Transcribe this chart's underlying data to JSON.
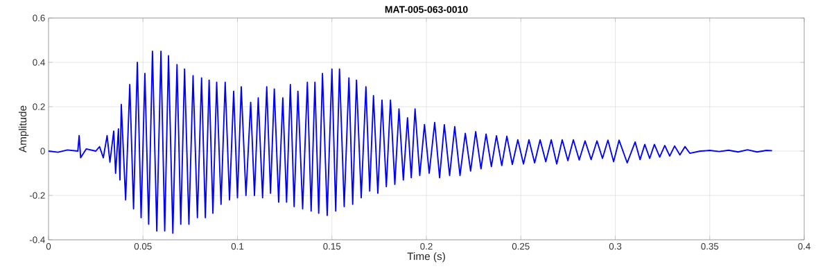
{
  "chart_data": {
    "type": "line",
    "title": "MAT-005-063-0010",
    "xlabel": "Time (s)",
    "ylabel": "Amplitude",
    "xlim": [
      0,
      0.4
    ],
    "xticks": [
      0,
      0.05,
      0.1,
      0.15,
      0.2,
      0.25,
      0.3,
      0.35,
      0.4
    ],
    "ylim": [
      -0.4,
      0.6
    ],
    "yticks": [
      -0.4,
      -0.2,
      0,
      0.2,
      0.4,
      0.6
    ],
    "grid": true,
    "series": [
      {
        "color": "#0000ff",
        "x": [
          0,
          0.005,
          0.01,
          0.0155,
          0.0162,
          0.017,
          0.02,
          0.025,
          0.027,
          0.029,
          0.031,
          0.0325,
          0.0345,
          0.0355,
          0.037,
          0.0378,
          0.0385,
          0.0408,
          0.043,
          0.045,
          0.047,
          0.049,
          0.051,
          0.053,
          0.055,
          0.0573,
          0.0595,
          0.0615,
          0.0635,
          0.0658,
          0.068,
          0.07,
          0.072,
          0.0743,
          0.0765,
          0.0788,
          0.081,
          0.083,
          0.085,
          0.087,
          0.089,
          0.0913,
          0.0935,
          0.0958,
          0.098,
          0.1,
          0.102,
          0.1045,
          0.107,
          0.109,
          0.111,
          0.1133,
          0.1155,
          0.1175,
          0.1195,
          0.1218,
          0.124,
          0.126,
          0.128,
          0.13,
          0.132,
          0.1345,
          0.137,
          0.139,
          0.141,
          0.143,
          0.145,
          0.1475,
          0.15,
          0.152,
          0.154,
          0.1565,
          0.159,
          0.161,
          0.163,
          0.1655,
          0.168,
          0.17,
          0.172,
          0.1743,
          0.1765,
          0.1788,
          0.181,
          0.1833,
          0.1855,
          0.1878,
          0.19,
          0.192,
          0.194,
          0.1965,
          0.199,
          0.2015,
          0.2044,
          0.207,
          0.2095,
          0.2123,
          0.215,
          0.2178,
          0.2206,
          0.2234,
          0.2261,
          0.2289,
          0.2316,
          0.2344,
          0.2371,
          0.2399,
          0.2426,
          0.2455,
          0.2484,
          0.2514,
          0.2543,
          0.2573,
          0.2602,
          0.2632,
          0.2661,
          0.269,
          0.2719,
          0.2749,
          0.2778,
          0.2809,
          0.284,
          0.2872,
          0.2903,
          0.2932,
          0.2961,
          0.2991,
          0.302,
          0.3063,
          0.3105,
          0.3131,
          0.3156,
          0.3182,
          0.3207,
          0.3235,
          0.3262,
          0.3288,
          0.3314,
          0.3342,
          0.3369,
          0.3395,
          0.345,
          0.35,
          0.355,
          0.36,
          0.365,
          0.37,
          0.375,
          0.38,
          0.383
        ],
        "values": [
          0,
          -0.005,
          0.005,
          0,
          0.07,
          -0.03,
          0.01,
          0,
          0.02,
          -0.03,
          0.07,
          -0.05,
          0.09,
          -0.1,
          0.1,
          -0.13,
          0.21,
          -0.22,
          0.3,
          -0.26,
          0.4,
          -0.3,
          0.35,
          -0.33,
          0.45,
          -0.36,
          0.45,
          -0.36,
          0.43,
          -0.37,
          0.39,
          -0.33,
          0.37,
          -0.33,
          0.34,
          -0.3,
          0.33,
          -0.3,
          0.32,
          -0.28,
          0.31,
          -0.24,
          0.31,
          -0.22,
          0.27,
          -0.21,
          0.29,
          -0.2,
          0.22,
          -0.2,
          0.24,
          -0.21,
          0.29,
          -0.19,
          0.28,
          -0.23,
          0.24,
          -0.23,
          0.3,
          -0.25,
          0.27,
          -0.26,
          0.31,
          -0.27,
          0.31,
          -0.28,
          0.35,
          -0.29,
          0.37,
          -0.27,
          0.37,
          -0.25,
          0.33,
          -0.24,
          0.32,
          -0.21,
          0.29,
          -0.18,
          0.25,
          -0.19,
          0.23,
          -0.16,
          0.23,
          -0.15,
          0.19,
          -0.13,
          0.15,
          -0.12,
          0.19,
          -0.11,
          0.12,
          -0.1,
          0.129,
          -0.12,
          0.119,
          -0.11,
          0.11,
          -0.11,
          0.08,
          -0.09,
          0.088,
          -0.08,
          0.077,
          -0.07,
          0.069,
          -0.065,
          0.067,
          -0.06,
          0.051,
          -0.058,
          0.051,
          -0.053,
          0.051,
          -0.048,
          0.051,
          -0.058,
          0.051,
          -0.043,
          0.051,
          -0.04,
          0.046,
          -0.038,
          0.046,
          -0.033,
          0.049,
          -0.048,
          0.049,
          -0.053,
          0.041,
          -0.038,
          0.03,
          -0.033,
          0.03,
          -0.027,
          0.025,
          -0.022,
          0.023,
          -0.017,
          0.02,
          -0.01,
          0,
          0.003,
          -0.002,
          0.004,
          -0.004,
          0.006,
          -0.004,
          0.003,
          0.002
        ]
      }
    ]
  }
}
